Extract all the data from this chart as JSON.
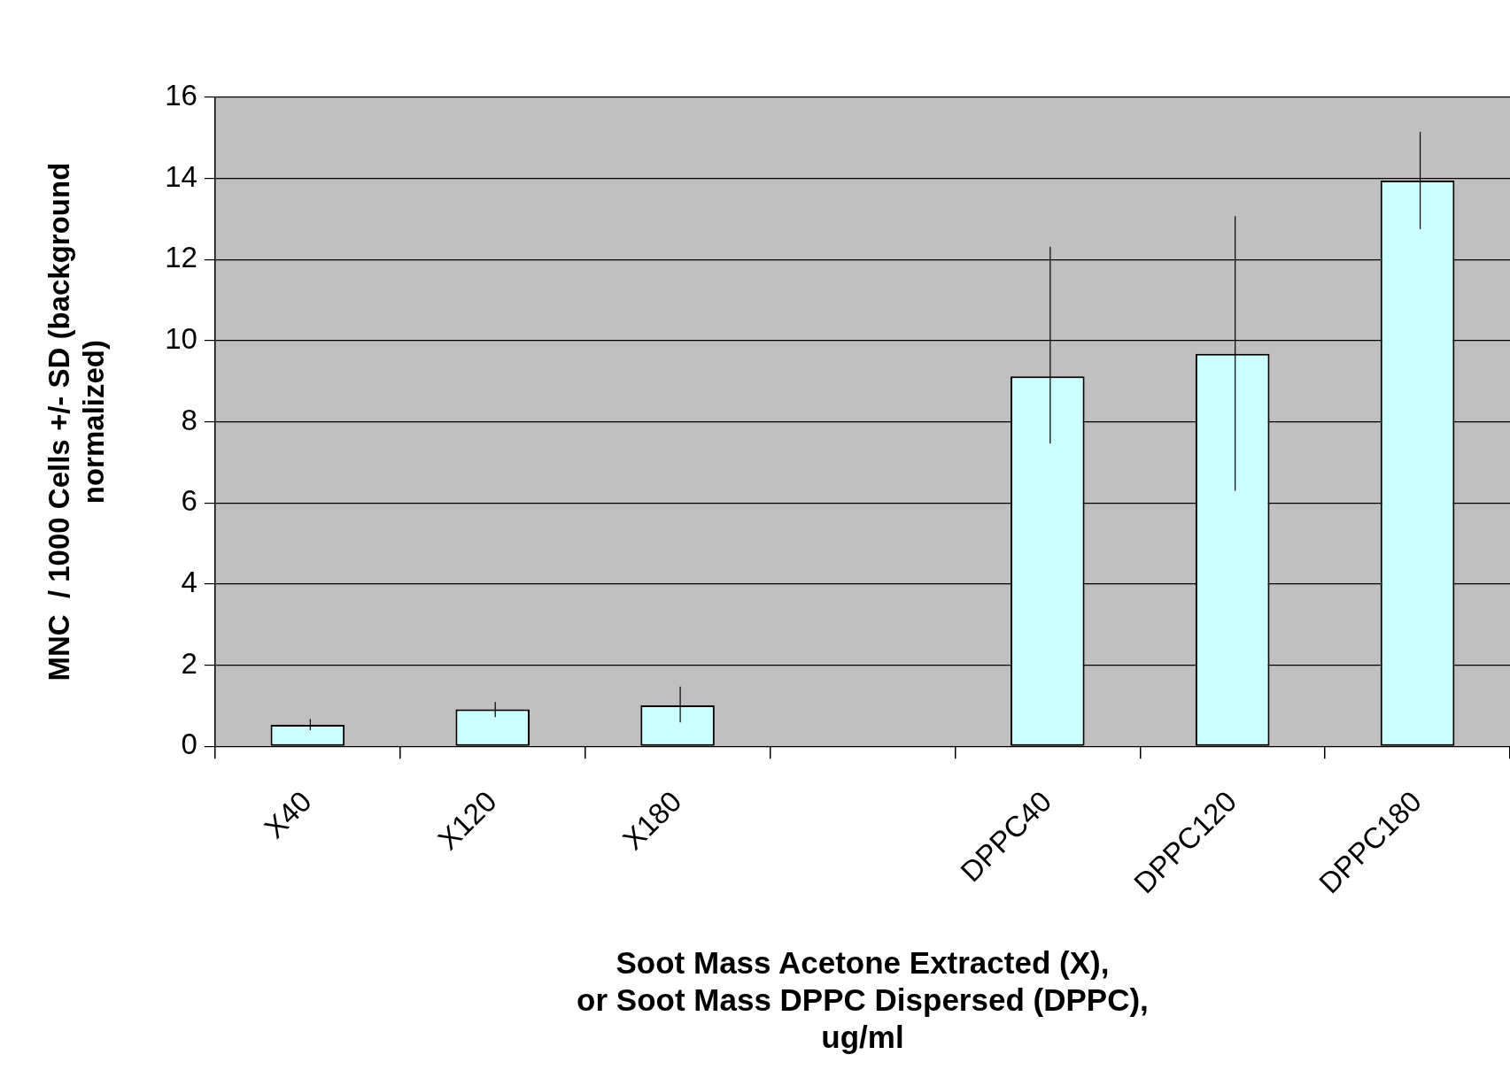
{
  "chart_data": {
    "type": "bar",
    "xlabel": "Soot Mass Acetone Extracted (X),\nor Soot Mass DPPC Dispersed (DPPC),\nug/ml",
    "ylabel": "MNC  / 1000 Cells +/- SD (background\nnormalized)",
    "categories": [
      "X40",
      "X120",
      "X180",
      null,
      "DPPC40",
      "DPPC120",
      "DPPC180"
    ],
    "values": [
      0.53,
      0.91,
      1.01,
      null,
      9.12,
      9.68,
      13.95
    ],
    "errors": [
      [
        0.4,
        0.67
      ],
      [
        0.72,
        1.09
      ],
      [
        0.59,
        1.47
      ],
      null,
      [
        7.47,
        12.32
      ],
      [
        6.3,
        13.07
      ],
      [
        12.75,
        15.15
      ]
    ],
    "color": "#ccffff",
    "ylim": [
      0,
      16
    ],
    "yticks": [
      0,
      2,
      4,
      6,
      8,
      10,
      12,
      14,
      16
    ],
    "grid": "y",
    "legend": false
  }
}
